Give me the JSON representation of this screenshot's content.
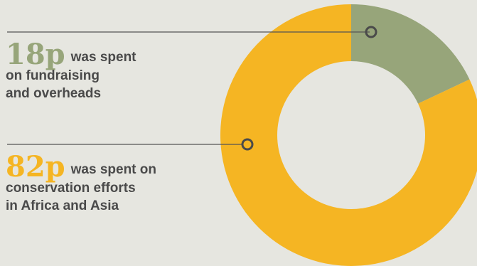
{
  "chart_data": {
    "type": "donut",
    "title": "",
    "categories": [
      "fundraising and overheads",
      "conservation efforts in Africa and Asia"
    ],
    "values": [
      18,
      82
    ],
    "unit": "p",
    "colors": [
      "#97a57a",
      "#f5b523"
    ],
    "labels": [
      {
        "amount": "18p",
        "line1": "was spent",
        "line2": "on fundraising",
        "line3": "and overheads"
      },
      {
        "amount": "82p",
        "line1": "was spent on",
        "line2": "conservation efforts",
        "line3": "in Africa and Asia"
      }
    ]
  },
  "theme": {
    "background": "#e6e6e0",
    "text": "#4a4a4a",
    "leader_line": "#555555",
    "hole": "#e6e6e0"
  }
}
